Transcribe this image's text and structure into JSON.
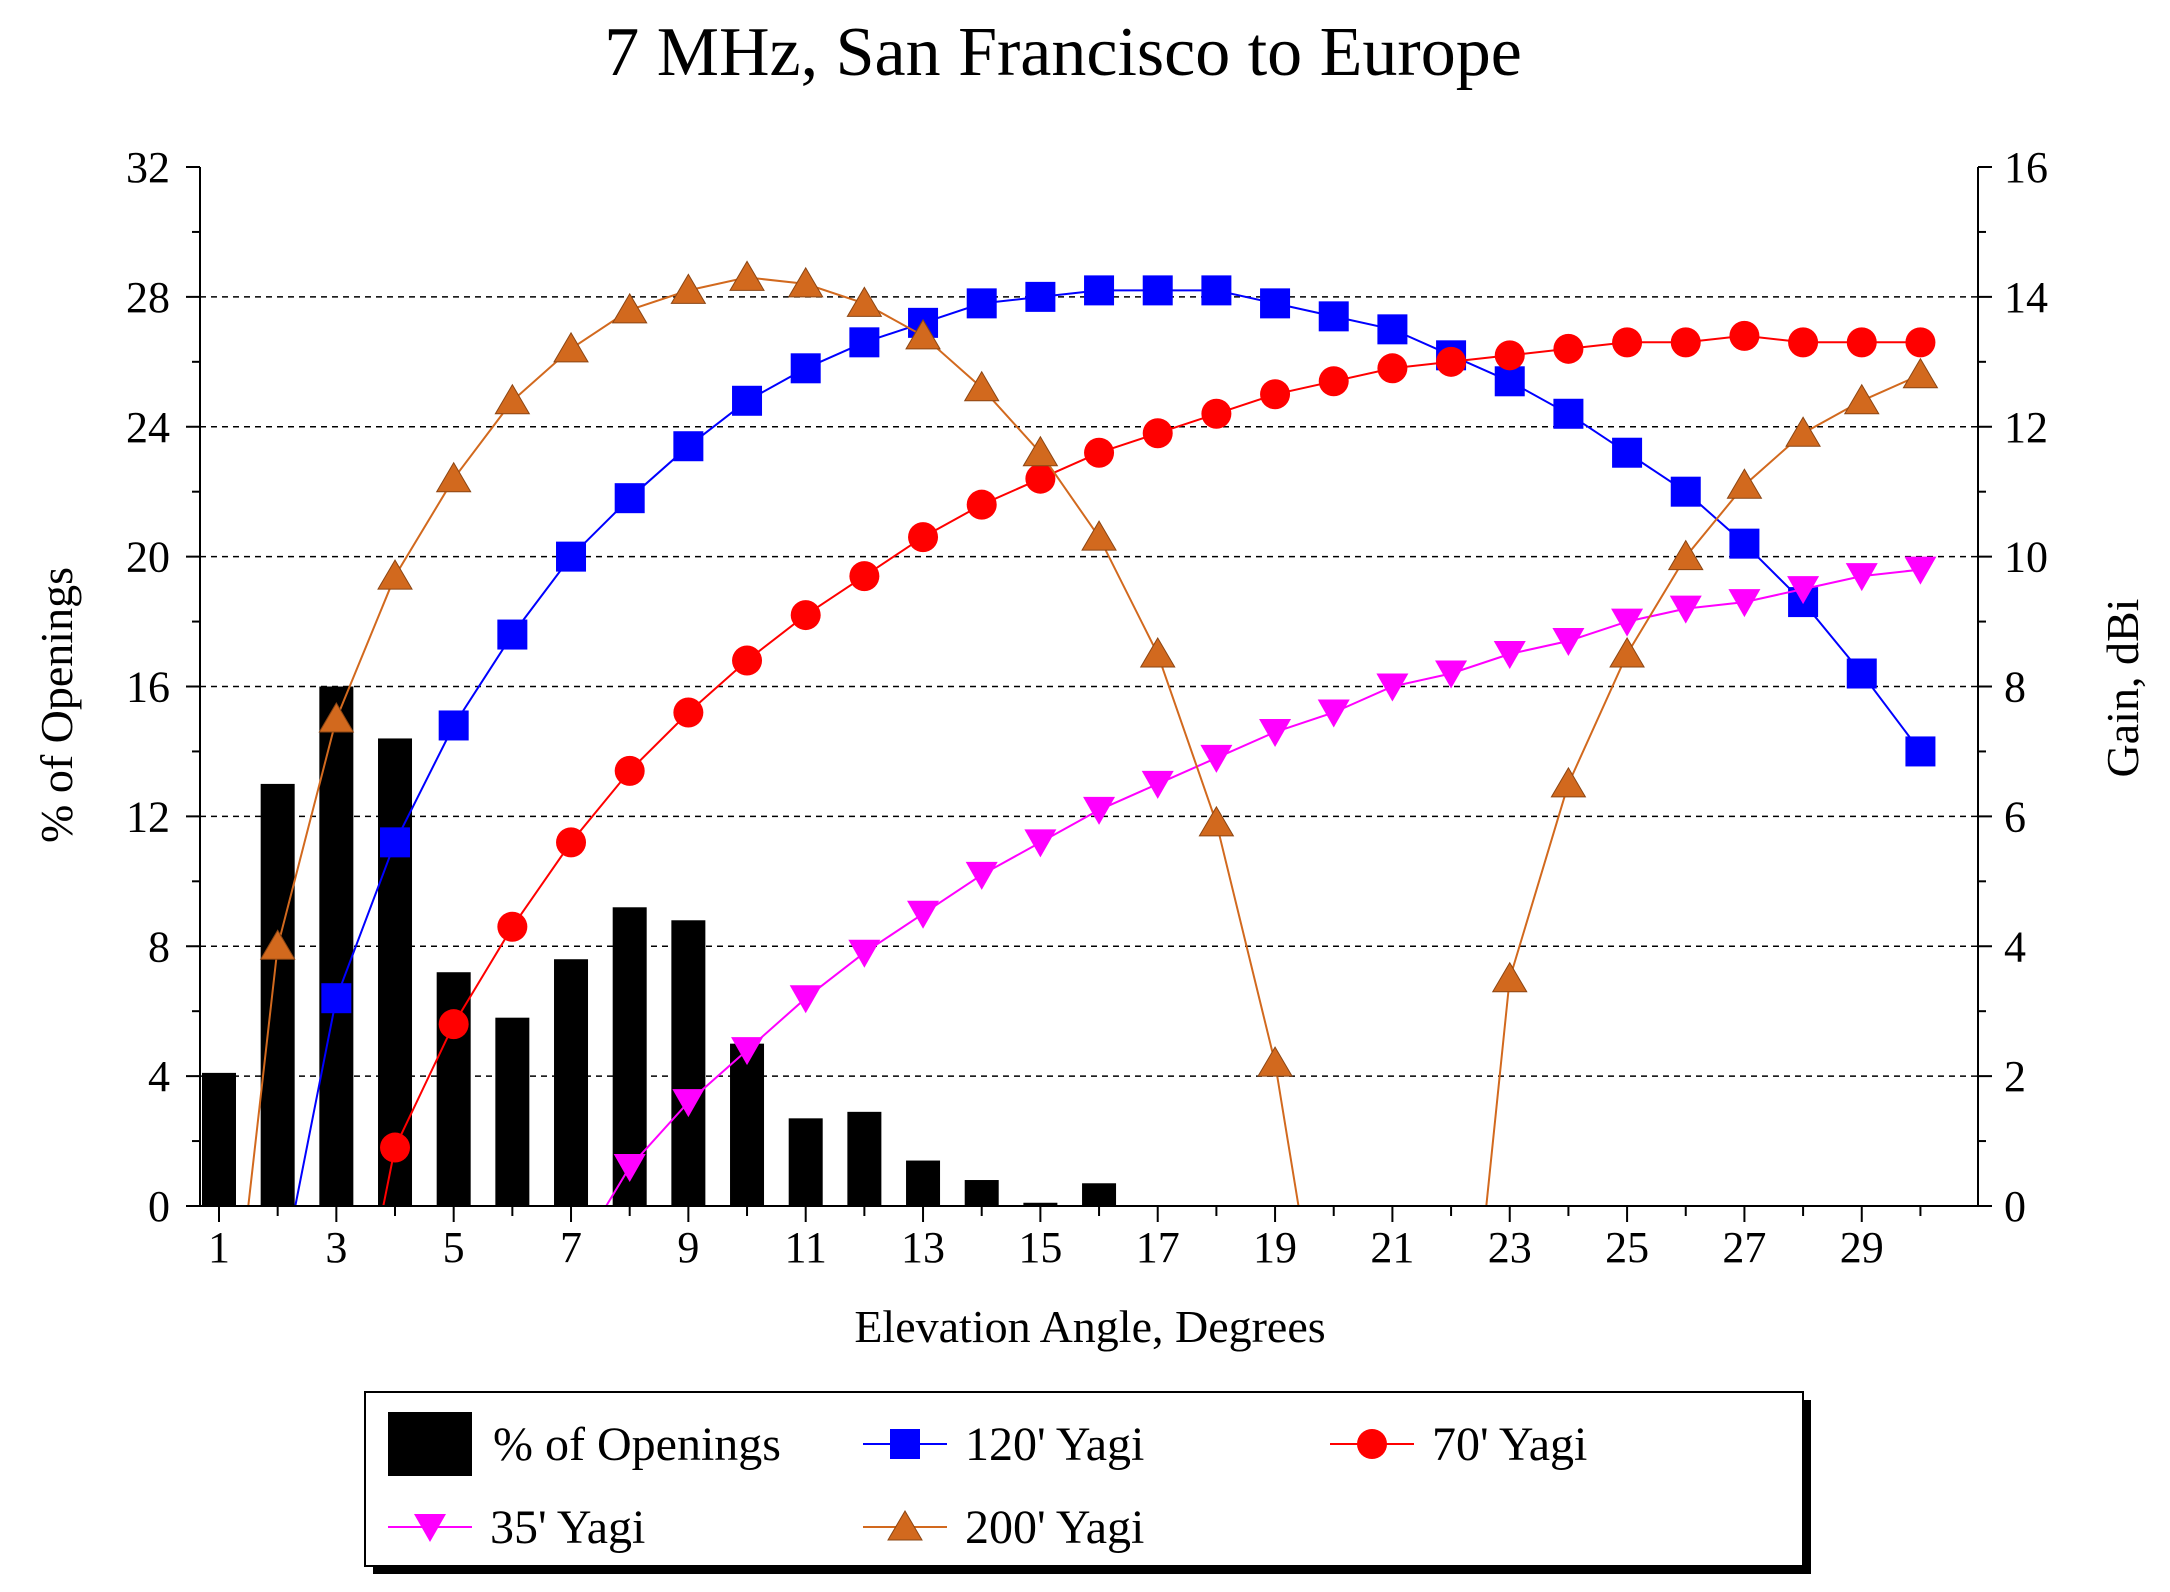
{
  "chart_data": {
    "type": "bar+line",
    "title": "7 MHz, San Francisco to Europe",
    "xlabel": "Elevation Angle, Degrees",
    "ylabel_left": "% of Openings",
    "ylabel_right": "Gain, dBi",
    "xlim": [
      1,
      30
    ],
    "ylim_left": [
      0,
      32
    ],
    "ylim_right": [
      0,
      16
    ],
    "x_ticks": [
      "1",
      "3",
      "5",
      "7",
      "9",
      "11",
      "13",
      "15",
      "17",
      "19",
      "21",
      "23",
      "25",
      "27",
      "29"
    ],
    "y_left_ticks": [
      "0",
      "4",
      "8",
      "12",
      "16",
      "20",
      "24",
      "28",
      "32"
    ],
    "y_right_ticks": [
      "0",
      "2",
      "4",
      "6",
      "8",
      "10",
      "12",
      "14",
      "16"
    ],
    "grid": "horizontal dashed",
    "legend_position": "bottom",
    "bars": {
      "name": "% of Openings",
      "color": "#000000",
      "x": [
        1,
        2,
        3,
        4,
        5,
        6,
        7,
        8,
        9,
        10,
        11,
        12,
        13,
        14,
        15,
        16
      ],
      "values": [
        4.1,
        13.0,
        16.0,
        14.4,
        7.2,
        5.8,
        7.6,
        9.2,
        8.8,
        5.0,
        2.7,
        2.9,
        1.4,
        0.8,
        0.1,
        0.7
      ]
    },
    "series": [
      {
        "name": "120' Yagi",
        "color": "#0000ff",
        "marker": "square",
        "points": [
          [
            2.3,
            0
          ],
          [
            3,
            3.2
          ],
          [
            4,
            5.6
          ],
          [
            5,
            7.4
          ],
          [
            6,
            8.8
          ],
          [
            7,
            10.0
          ],
          [
            8,
            10.9
          ],
          [
            9,
            11.7
          ],
          [
            10,
            12.4
          ],
          [
            11,
            12.9
          ],
          [
            12,
            13.3
          ],
          [
            13,
            13.6
          ],
          [
            14,
            13.9
          ],
          [
            15,
            14.0
          ],
          [
            16,
            14.1
          ],
          [
            17,
            14.1
          ],
          [
            18,
            14.1
          ],
          [
            19,
            13.9
          ],
          [
            20,
            13.7
          ],
          [
            21,
            13.5
          ],
          [
            22,
            13.1
          ],
          [
            23,
            12.7
          ],
          [
            24,
            12.2
          ],
          [
            25,
            11.6
          ],
          [
            26,
            11.0
          ],
          [
            27,
            10.2
          ],
          [
            28,
            9.3
          ],
          [
            29,
            8.2
          ],
          [
            30,
            7.0
          ]
        ]
      },
      {
        "name": "70' Yagi",
        "color": "#ff0000",
        "marker": "circle",
        "points": [
          [
            3.8,
            0
          ],
          [
            4,
            0.9
          ],
          [
            5,
            2.8
          ],
          [
            6,
            4.3
          ],
          [
            7,
            5.6
          ],
          [
            8,
            6.7
          ],
          [
            9,
            7.6
          ],
          [
            10,
            8.4
          ],
          [
            11,
            9.1
          ],
          [
            12,
            9.7
          ],
          [
            13,
            10.3
          ],
          [
            14,
            10.8
          ],
          [
            15,
            11.2
          ],
          [
            16,
            11.6
          ],
          [
            17,
            11.9
          ],
          [
            18,
            12.2
          ],
          [
            19,
            12.5
          ],
          [
            20,
            12.7
          ],
          [
            21,
            12.9
          ],
          [
            22,
            13.0
          ],
          [
            23,
            13.1
          ],
          [
            24,
            13.2
          ],
          [
            25,
            13.3
          ],
          [
            26,
            13.3
          ],
          [
            27,
            13.4
          ],
          [
            28,
            13.3
          ],
          [
            29,
            13.3
          ],
          [
            30,
            13.3
          ]
        ]
      },
      {
        "name": "35' Yagi",
        "color": "#ff00ff",
        "marker": "triangle-down",
        "points": [
          [
            7.6,
            0
          ],
          [
            8,
            0.6
          ],
          [
            9,
            1.6
          ],
          [
            10,
            2.4
          ],
          [
            11,
            3.2
          ],
          [
            12,
            3.9
          ],
          [
            13,
            4.5
          ],
          [
            14,
            5.1
          ],
          [
            15,
            5.6
          ],
          [
            16,
            6.1
          ],
          [
            17,
            6.5
          ],
          [
            18,
            6.9
          ],
          [
            19,
            7.3
          ],
          [
            20,
            7.6
          ],
          [
            21,
            8.0
          ],
          [
            22,
            8.2
          ],
          [
            23,
            8.5
          ],
          [
            24,
            8.7
          ],
          [
            25,
            9.0
          ],
          [
            26,
            9.2
          ],
          [
            27,
            9.3
          ],
          [
            28,
            9.5
          ],
          [
            29,
            9.7
          ],
          [
            30,
            9.8
          ]
        ]
      },
      {
        "name": "200' Yagi",
        "color": "#d2691e",
        "marker": "triangle-up",
        "points": [
          [
            1.5,
            0
          ],
          [
            2,
            4.0
          ],
          [
            3,
            7.5
          ],
          [
            4,
            9.7
          ],
          [
            5,
            11.2
          ],
          [
            6,
            12.4
          ],
          [
            7,
            13.2
          ],
          [
            8,
            13.8
          ],
          [
            9,
            14.1
          ],
          [
            10,
            14.3
          ],
          [
            11,
            14.2
          ],
          [
            12,
            13.9
          ],
          [
            13,
            13.4
          ],
          [
            14,
            12.6
          ],
          [
            15,
            11.6
          ],
          [
            16,
            10.3
          ],
          [
            17,
            8.5
          ],
          [
            18,
            5.9
          ],
          [
            19,
            2.2
          ],
          [
            19.4,
            0
          ],
          [
            22.6,
            0
          ],
          [
            23,
            3.5
          ],
          [
            24,
            6.5
          ],
          [
            25,
            8.5
          ],
          [
            26,
            10.0
          ],
          [
            27,
            11.1
          ],
          [
            28,
            11.9
          ],
          [
            29,
            12.4
          ],
          [
            30,
            12.8
          ]
        ]
      }
    ]
  }
}
